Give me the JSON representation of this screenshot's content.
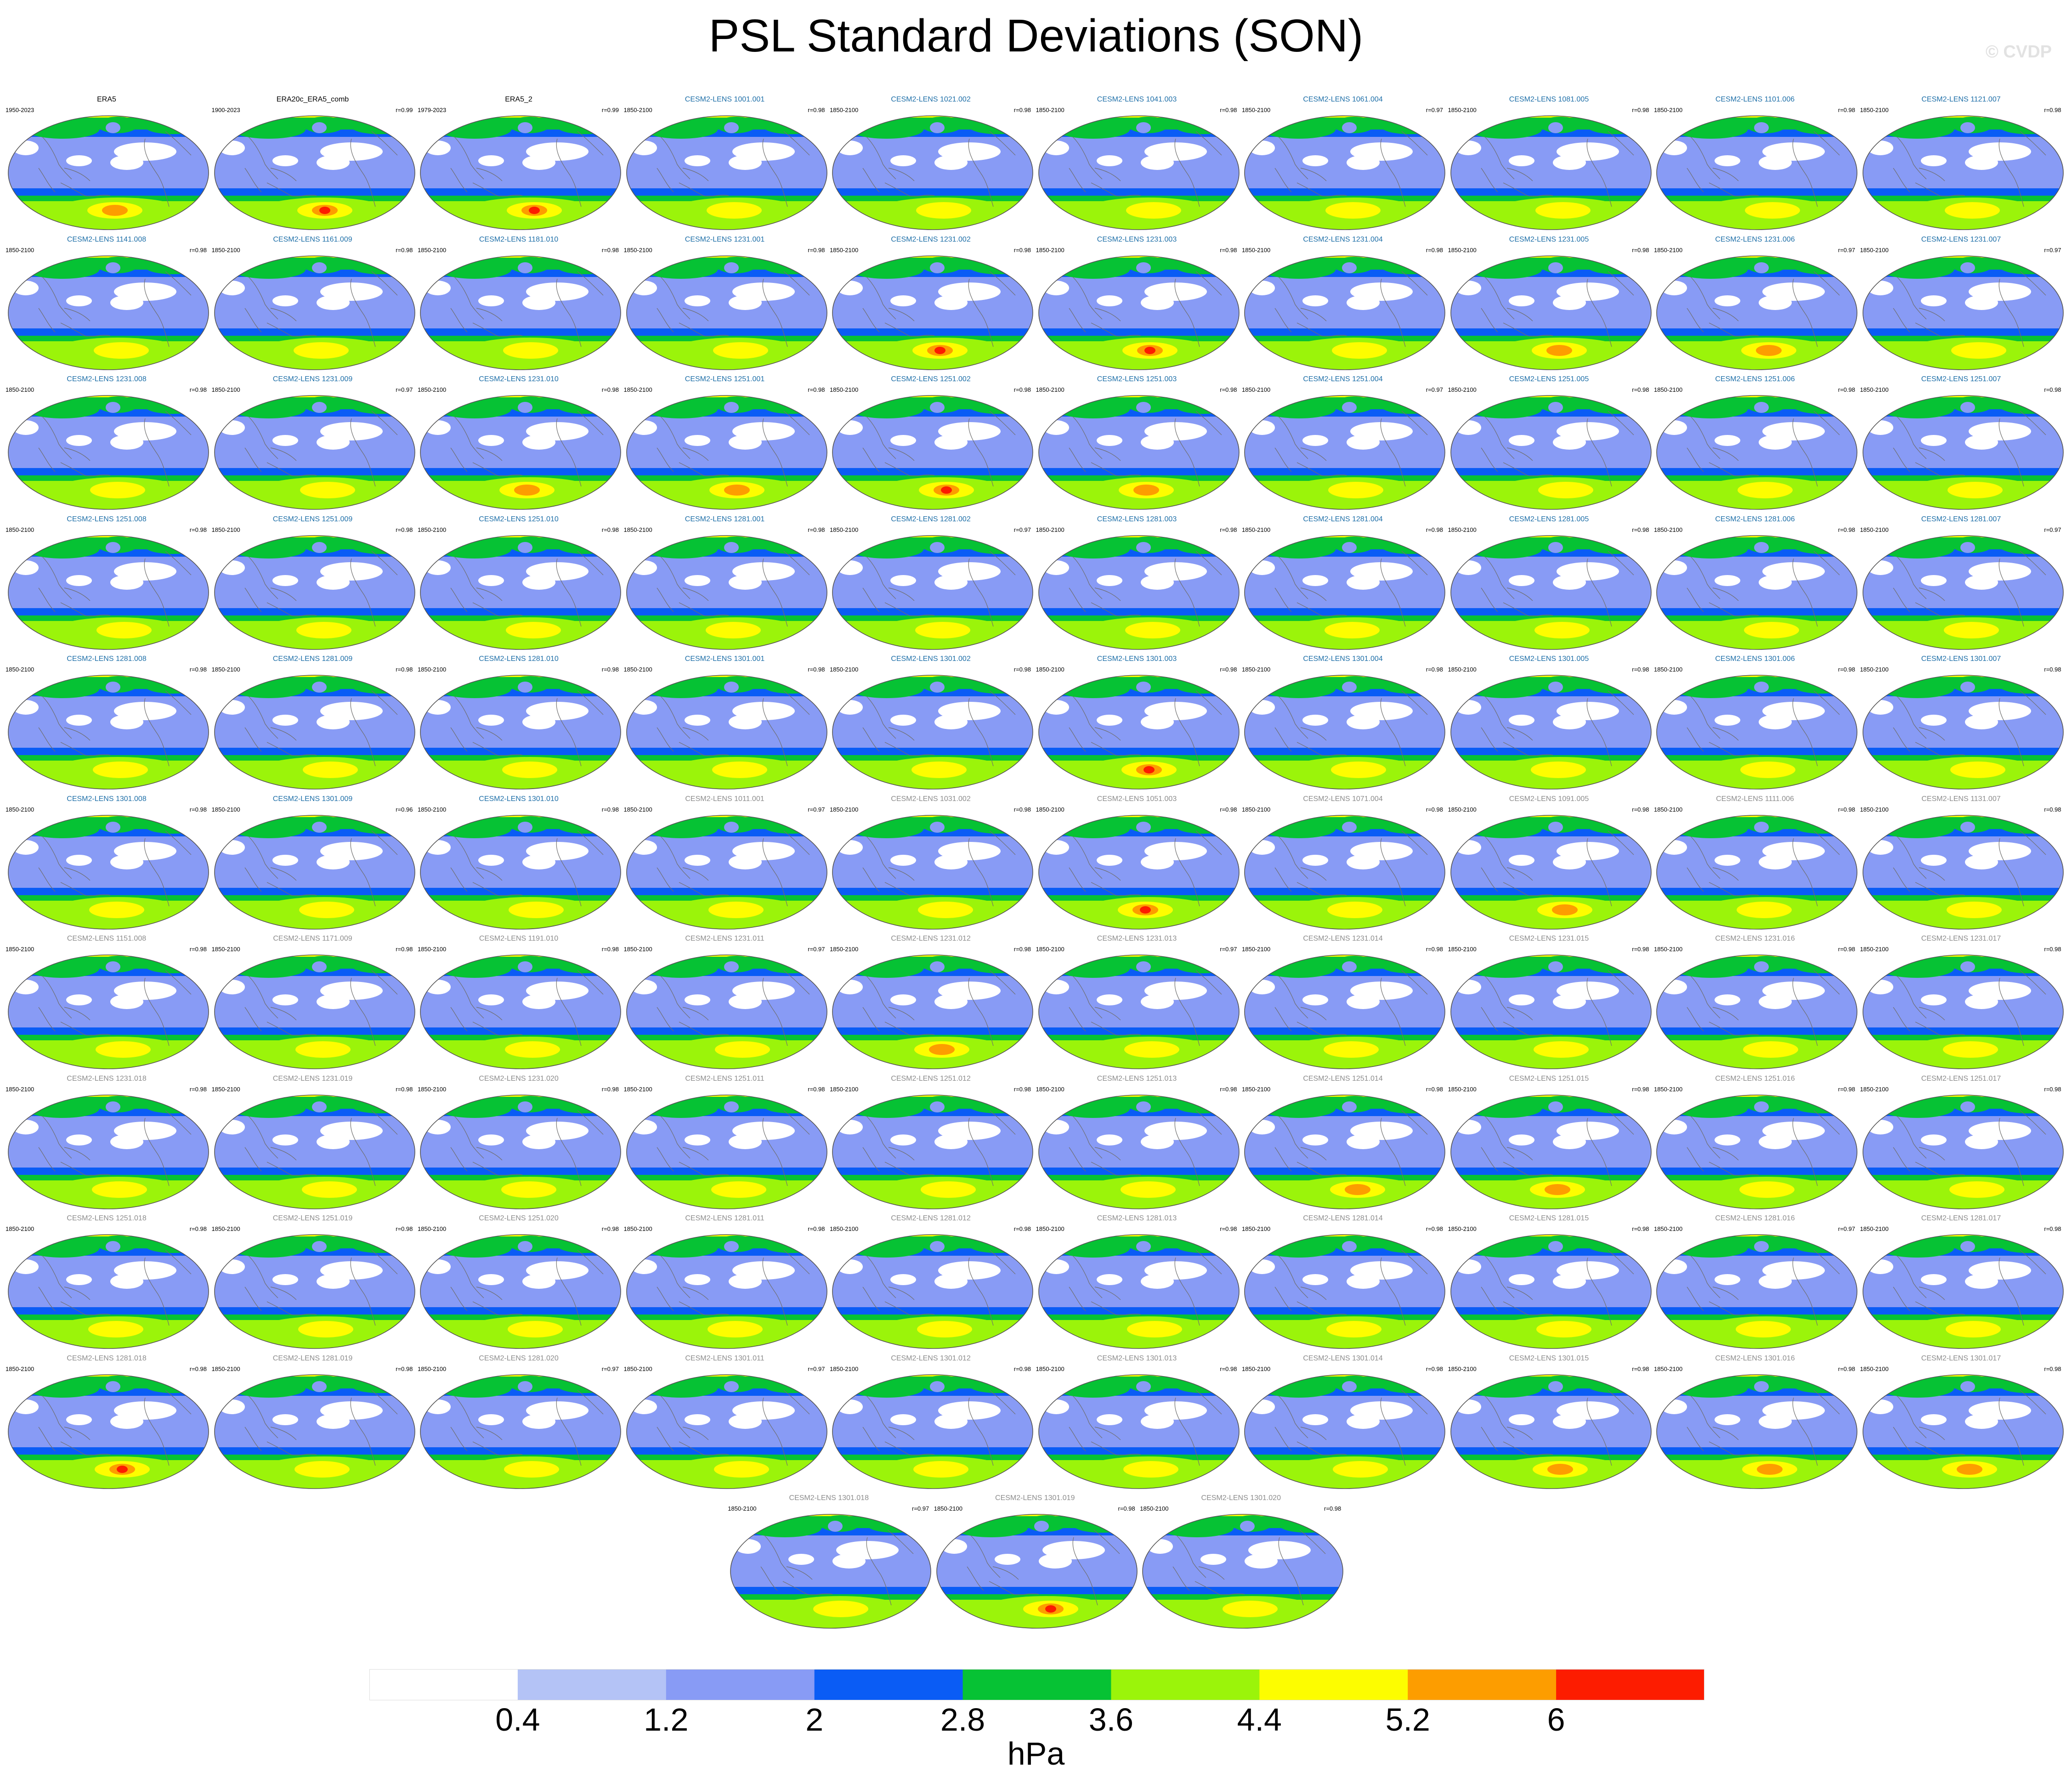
{
  "title": "PSL Standard Deviations (SON)",
  "watermark": "© CVDP",
  "colorbar": {
    "units": "hPa",
    "tick_labels": [
      "0.4",
      "1.2",
      "2",
      "2.8",
      "3.6",
      "4.4",
      "5.2",
      "6"
    ],
    "colors": [
      "#ffffff",
      "#b4c3f6",
      "#889bf5",
      "#0a5cf5",
      "#06c234",
      "#9bf40a",
      "#fdfd00",
      "#fd9d00",
      "#fd1c00"
    ]
  },
  "colors": {
    "observation_label": "#000000",
    "member_label_main": "#1e6fa8",
    "member_label_alt": "#8c8c8c",
    "coastline": "#6e6e6e"
  },
  "chart_data": {
    "type": "heatmap",
    "title": "PSL Standard Deviations (SON)",
    "colorbar_units": "hPa",
    "colorbar_levels": [
      0.4,
      1.2,
      2,
      2.8,
      3.6,
      4.4,
      5.2,
      6
    ],
    "colorbar_range": [
      0,
      6.8
    ],
    "rows": [
      [
        {
          "name": "ERA5",
          "period": "1950-2023",
          "r": "",
          "color_key": "obs",
          "peak": 5.4
        },
        {
          "name": "ERA20c_ERA5_comb",
          "period": "1900-2023",
          "r": "r=0.99",
          "color_key": "obs",
          "peak": 6.2
        },
        {
          "name": "ERA5_2",
          "period": "1979-2023",
          "r": "r=0.99",
          "color_key": "obs",
          "peak": 6.0
        },
        {
          "name": "CESM2-LENS 1001.001",
          "period": "1850-2100",
          "r": "r=0.98",
          "color_key": "main",
          "peak": 5.0
        },
        {
          "name": "CESM2-LENS 1021.002",
          "period": "1850-2100",
          "r": "r=0.98",
          "color_key": "main",
          "peak": 5.0
        },
        {
          "name": "CESM2-LENS 1041.003",
          "period": "1850-2100",
          "r": "r=0.98",
          "color_key": "main",
          "peak": 5.0
        },
        {
          "name": "CESM2-LENS 1061.004",
          "period": "1850-2100",
          "r": "r=0.97",
          "color_key": "main",
          "peak": 5.0
        },
        {
          "name": "CESM2-LENS 1081.005",
          "period": "1850-2100",
          "r": "r=0.98",
          "color_key": "main",
          "peak": 5.0
        },
        {
          "name": "CESM2-LENS 1101.006",
          "period": "1850-2100",
          "r": "r=0.98",
          "color_key": "main",
          "peak": 5.0
        },
        {
          "name": "CESM2-LENS 1121.007",
          "period": "1850-2100",
          "r": "r=0.98",
          "color_key": "main",
          "peak": 5.0
        }
      ],
      [
        {
          "name": "CESM2-LENS 1141.008",
          "period": "1850-2100",
          "r": "r=0.98",
          "color_key": "main",
          "peak": 5.0
        },
        {
          "name": "CESM2-LENS 1161.009",
          "period": "1850-2100",
          "r": "r=0.98",
          "color_key": "main",
          "peak": 5.0
        },
        {
          "name": "CESM2-LENS 1181.010",
          "period": "1850-2100",
          "r": "r=0.98",
          "color_key": "main",
          "peak": 5.0
        },
        {
          "name": "CESM2-LENS 1231.001",
          "period": "1850-2100",
          "r": "r=0.98",
          "color_key": "main",
          "peak": 5.0
        },
        {
          "name": "CESM2-LENS 1231.002",
          "period": "1850-2100",
          "r": "r=0.98",
          "color_key": "main",
          "peak": 6.0
        },
        {
          "name": "CESM2-LENS 1231.003",
          "period": "1850-2100",
          "r": "r=0.98",
          "color_key": "main",
          "peak": 6.0
        },
        {
          "name": "CESM2-LENS 1231.004",
          "period": "1850-2100",
          "r": "r=0.98",
          "color_key": "main",
          "peak": 5.0
        },
        {
          "name": "CESM2-LENS 1231.005",
          "period": "1850-2100",
          "r": "r=0.98",
          "color_key": "main",
          "peak": 5.4
        },
        {
          "name": "CESM2-LENS 1231.006",
          "period": "1850-2100",
          "r": "r=0.97",
          "color_key": "main",
          "peak": 5.4
        },
        {
          "name": "CESM2-LENS 1231.007",
          "period": "1850-2100",
          "r": "r=0.97",
          "color_key": "main",
          "peak": 5.0
        }
      ],
      [
        {
          "name": "CESM2-LENS 1231.008",
          "period": "1850-2100",
          "r": "r=0.98",
          "color_key": "main",
          "peak": 5.0
        },
        {
          "name": "CESM2-LENS 1231.009",
          "period": "1850-2100",
          "r": "r=0.97",
          "color_key": "main",
          "peak": 5.0
        },
        {
          "name": "CESM2-LENS 1231.010",
          "period": "1850-2100",
          "r": "r=0.98",
          "color_key": "main",
          "peak": 5.4
        },
        {
          "name": "CESM2-LENS 1251.001",
          "period": "1850-2100",
          "r": "r=0.98",
          "color_key": "main",
          "peak": 5.4
        },
        {
          "name": "CESM2-LENS 1251.002",
          "period": "1850-2100",
          "r": "r=0.98",
          "color_key": "main",
          "peak": 6.0
        },
        {
          "name": "CESM2-LENS 1251.003",
          "period": "1850-2100",
          "r": "r=0.98",
          "color_key": "main",
          "peak": 5.4
        },
        {
          "name": "CESM2-LENS 1251.004",
          "period": "1850-2100",
          "r": "r=0.97",
          "color_key": "main",
          "peak": 5.0
        },
        {
          "name": "CESM2-LENS 1251.005",
          "period": "1850-2100",
          "r": "r=0.98",
          "color_key": "main",
          "peak": 5.0
        },
        {
          "name": "CESM2-LENS 1251.006",
          "period": "1850-2100",
          "r": "r=0.98",
          "color_key": "main",
          "peak": 5.0
        },
        {
          "name": "CESM2-LENS 1251.007",
          "period": "1850-2100",
          "r": "r=0.98",
          "color_key": "main",
          "peak": 5.0
        }
      ],
      [
        {
          "name": "CESM2-LENS 1251.008",
          "period": "1850-2100",
          "r": "r=0.98",
          "color_key": "main",
          "peak": 5.0
        },
        {
          "name": "CESM2-LENS 1251.009",
          "period": "1850-2100",
          "r": "r=0.98",
          "color_key": "main",
          "peak": 5.0
        },
        {
          "name": "CESM2-LENS 1251.010",
          "period": "1850-2100",
          "r": "r=0.98",
          "color_key": "main",
          "peak": 5.0
        },
        {
          "name": "CESM2-LENS 1281.001",
          "period": "1850-2100",
          "r": "r=0.98",
          "color_key": "main",
          "peak": 5.0
        },
        {
          "name": "CESM2-LENS 1281.002",
          "period": "1850-2100",
          "r": "r=0.97",
          "color_key": "main",
          "peak": 5.0
        },
        {
          "name": "CESM2-LENS 1281.003",
          "period": "1850-2100",
          "r": "r=0.98",
          "color_key": "main",
          "peak": 5.0
        },
        {
          "name": "CESM2-LENS 1281.004",
          "period": "1850-2100",
          "r": "r=0.98",
          "color_key": "main",
          "peak": 5.0
        },
        {
          "name": "CESM2-LENS 1281.005",
          "period": "1850-2100",
          "r": "r=0.98",
          "color_key": "main",
          "peak": 5.0
        },
        {
          "name": "CESM2-LENS 1281.006",
          "period": "1850-2100",
          "r": "r=0.98",
          "color_key": "main",
          "peak": 5.0
        },
        {
          "name": "CESM2-LENS 1281.007",
          "period": "1850-2100",
          "r": "r=0.97",
          "color_key": "main",
          "peak": 5.0
        }
      ],
      [
        {
          "name": "CESM2-LENS 1281.008",
          "period": "1850-2100",
          "r": "r=0.98",
          "color_key": "main",
          "peak": 5.0
        },
        {
          "name": "CESM2-LENS 1281.009",
          "period": "1850-2100",
          "r": "r=0.98",
          "color_key": "main",
          "peak": 5.0
        },
        {
          "name": "CESM2-LENS 1281.010",
          "period": "1850-2100",
          "r": "r=0.98",
          "color_key": "main",
          "peak": 5.0
        },
        {
          "name": "CESM2-LENS 1301.001",
          "period": "1850-2100",
          "r": "r=0.98",
          "color_key": "main",
          "peak": 5.0
        },
        {
          "name": "CESM2-LENS 1301.002",
          "period": "1850-2100",
          "r": "r=0.98",
          "color_key": "main",
          "peak": 5.0
        },
        {
          "name": "CESM2-LENS 1301.003",
          "period": "1850-2100",
          "r": "r=0.98",
          "color_key": "main",
          "peak": 6.0
        },
        {
          "name": "CESM2-LENS 1301.004",
          "period": "1850-2100",
          "r": "r=0.98",
          "color_key": "main",
          "peak": 5.0
        },
        {
          "name": "CESM2-LENS 1301.005",
          "period": "1850-2100",
          "r": "r=0.98",
          "color_key": "main",
          "peak": 5.0
        },
        {
          "name": "CESM2-LENS 1301.006",
          "period": "1850-2100",
          "r": "r=0.98",
          "color_key": "main",
          "peak": 5.0
        },
        {
          "name": "CESM2-LENS 1301.007",
          "period": "1850-2100",
          "r": "r=0.98",
          "color_key": "main",
          "peak": 5.0
        }
      ],
      [
        {
          "name": "CESM2-LENS 1301.008",
          "period": "1850-2100",
          "r": "r=0.98",
          "color_key": "main",
          "peak": 5.0
        },
        {
          "name": "CESM2-LENS 1301.009",
          "period": "1850-2100",
          "r": "r=0.96",
          "color_key": "main",
          "peak": 5.0
        },
        {
          "name": "CESM2-LENS 1301.010",
          "period": "1850-2100",
          "r": "r=0.98",
          "color_key": "main",
          "peak": 5.0
        },
        {
          "name": "CESM2-LENS 1011.001",
          "period": "1850-2100",
          "r": "r=0.97",
          "color_key": "alt",
          "peak": 5.0
        },
        {
          "name": "CESM2-LENS 1031.002",
          "period": "1850-2100",
          "r": "r=0.98",
          "color_key": "alt",
          "peak": 5.0
        },
        {
          "name": "CESM2-LENS 1051.003",
          "period": "1850-2100",
          "r": "r=0.98",
          "color_key": "alt",
          "peak": 6.0
        },
        {
          "name": "CESM2-LENS 1071.004",
          "period": "1850-2100",
          "r": "r=0.98",
          "color_key": "alt",
          "peak": 5.0
        },
        {
          "name": "CESM2-LENS 1091.005",
          "period": "1850-2100",
          "r": "r=0.98",
          "color_key": "alt",
          "peak": 5.4
        },
        {
          "name": "CESM2-LENS 1111.006",
          "period": "1850-2100",
          "r": "r=0.98",
          "color_key": "alt",
          "peak": 5.0
        },
        {
          "name": "CESM2-LENS 1131.007",
          "period": "1850-2100",
          "r": "r=0.98",
          "color_key": "alt",
          "peak": 5.0
        }
      ],
      [
        {
          "name": "CESM2-LENS 1151.008",
          "period": "1850-2100",
          "r": "r=0.98",
          "color_key": "alt",
          "peak": 5.0
        },
        {
          "name": "CESM2-LENS 1171.009",
          "period": "1850-2100",
          "r": "r=0.98",
          "color_key": "alt",
          "peak": 5.0
        },
        {
          "name": "CESM2-LENS 1191.010",
          "period": "1850-2100",
          "r": "r=0.98",
          "color_key": "alt",
          "peak": 5.0
        },
        {
          "name": "CESM2-LENS 1231.011",
          "period": "1850-2100",
          "r": "r=0.97",
          "color_key": "alt",
          "peak": 5.0
        },
        {
          "name": "CESM2-LENS 1231.012",
          "period": "1850-2100",
          "r": "r=0.98",
          "color_key": "alt",
          "peak": 5.4
        },
        {
          "name": "CESM2-LENS 1231.013",
          "period": "1850-2100",
          "r": "r=0.97",
          "color_key": "alt",
          "peak": 5.0
        },
        {
          "name": "CESM2-LENS 1231.014",
          "period": "1850-2100",
          "r": "r=0.98",
          "color_key": "alt",
          "peak": 5.0
        },
        {
          "name": "CESM2-LENS 1231.015",
          "period": "1850-2100",
          "r": "r=0.98",
          "color_key": "alt",
          "peak": 5.0
        },
        {
          "name": "CESM2-LENS 1231.016",
          "period": "1850-2100",
          "r": "r=0.98",
          "color_key": "alt",
          "peak": 5.0
        },
        {
          "name": "CESM2-LENS 1231.017",
          "period": "1850-2100",
          "r": "r=0.98",
          "color_key": "alt",
          "peak": 5.0
        }
      ],
      [
        {
          "name": "CESM2-LENS 1231.018",
          "period": "1850-2100",
          "r": "r=0.98",
          "color_key": "alt",
          "peak": 5.0
        },
        {
          "name": "CESM2-LENS 1231.019",
          "period": "1850-2100",
          "r": "r=0.98",
          "color_key": "alt",
          "peak": 5.0
        },
        {
          "name": "CESM2-LENS 1231.020",
          "period": "1850-2100",
          "r": "r=0.98",
          "color_key": "alt",
          "peak": 5.0
        },
        {
          "name": "CESM2-LENS 1251.011",
          "period": "1850-2100",
          "r": "r=0.98",
          "color_key": "alt",
          "peak": 5.0
        },
        {
          "name": "CESM2-LENS 1251.012",
          "period": "1850-2100",
          "r": "r=0.98",
          "color_key": "alt",
          "peak": 5.0
        },
        {
          "name": "CESM2-LENS 1251.013",
          "period": "1850-2100",
          "r": "r=0.98",
          "color_key": "alt",
          "peak": 5.0
        },
        {
          "name": "CESM2-LENS 1251.014",
          "period": "1850-2100",
          "r": "r=0.98",
          "color_key": "alt",
          "peak": 5.4
        },
        {
          "name": "CESM2-LENS 1251.015",
          "period": "1850-2100",
          "r": "r=0.98",
          "color_key": "alt",
          "peak": 5.4
        },
        {
          "name": "CESM2-LENS 1251.016",
          "period": "1850-2100",
          "r": "r=0.98",
          "color_key": "alt",
          "peak": 5.0
        },
        {
          "name": "CESM2-LENS 1251.017",
          "period": "1850-2100",
          "r": "r=0.98",
          "color_key": "alt",
          "peak": 5.0
        }
      ],
      [
        {
          "name": "CESM2-LENS 1251.018",
          "period": "1850-2100",
          "r": "r=0.98",
          "color_key": "alt",
          "peak": 5.0
        },
        {
          "name": "CESM2-LENS 1251.019",
          "period": "1850-2100",
          "r": "r=0.98",
          "color_key": "alt",
          "peak": 5.0
        },
        {
          "name": "CESM2-LENS 1251.020",
          "period": "1850-2100",
          "r": "r=0.98",
          "color_key": "alt",
          "peak": 5.0
        },
        {
          "name": "CESM2-LENS 1281.011",
          "period": "1850-2100",
          "r": "r=0.98",
          "color_key": "alt",
          "peak": 5.0
        },
        {
          "name": "CESM2-LENS 1281.012",
          "period": "1850-2100",
          "r": "r=0.98",
          "color_key": "alt",
          "peak": 5.0
        },
        {
          "name": "CESM2-LENS 1281.013",
          "period": "1850-2100",
          "r": "r=0.98",
          "color_key": "alt",
          "peak": 5.0
        },
        {
          "name": "CESM2-LENS 1281.014",
          "period": "1850-2100",
          "r": "r=0.98",
          "color_key": "alt",
          "peak": 5.0
        },
        {
          "name": "CESM2-LENS 1281.015",
          "period": "1850-2100",
          "r": "r=0.98",
          "color_key": "alt",
          "peak": 5.0
        },
        {
          "name": "CESM2-LENS 1281.016",
          "period": "1850-2100",
          "r": "r=0.97",
          "color_key": "alt",
          "peak": 5.0
        },
        {
          "name": "CESM2-LENS 1281.017",
          "period": "1850-2100",
          "r": "r=0.98",
          "color_key": "alt",
          "peak": 5.0
        }
      ],
      [
        {
          "name": "CESM2-LENS 1281.018",
          "period": "1850-2100",
          "r": "r=0.98",
          "color_key": "alt",
          "peak": 6.0
        },
        {
          "name": "CESM2-LENS 1281.019",
          "period": "1850-2100",
          "r": "r=0.98",
          "color_key": "alt",
          "peak": 5.0
        },
        {
          "name": "CESM2-LENS 1281.020",
          "period": "1850-2100",
          "r": "r=0.97",
          "color_key": "alt",
          "peak": 5.0
        },
        {
          "name": "CESM2-LENS 1301.011",
          "period": "1850-2100",
          "r": "r=0.97",
          "color_key": "alt",
          "peak": 5.0
        },
        {
          "name": "CESM2-LENS 1301.012",
          "period": "1850-2100",
          "r": "r=0.98",
          "color_key": "alt",
          "peak": 5.0
        },
        {
          "name": "CESM2-LENS 1301.013",
          "period": "1850-2100",
          "r": "r=0.98",
          "color_key": "alt",
          "peak": 5.0
        },
        {
          "name": "CESM2-LENS 1301.014",
          "period": "1850-2100",
          "r": "r=0.98",
          "color_key": "alt",
          "peak": 5.0
        },
        {
          "name": "CESM2-LENS 1301.015",
          "period": "1850-2100",
          "r": "r=0.98",
          "color_key": "alt",
          "peak": 5.4
        },
        {
          "name": "CESM2-LENS 1301.016",
          "period": "1850-2100",
          "r": "r=0.98",
          "color_key": "alt",
          "peak": 5.4
        },
        {
          "name": "CESM2-LENS 1301.017",
          "period": "1850-2100",
          "r": "r=0.98",
          "color_key": "alt",
          "peak": 5.4
        }
      ],
      [
        {
          "name": "CESM2-LENS 1301.018",
          "period": "1850-2100",
          "r": "r=0.97",
          "color_key": "alt",
          "peak": 5.0
        },
        {
          "name": "CESM2-LENS 1301.019",
          "period": "1850-2100",
          "r": "r=0.98",
          "color_key": "alt",
          "peak": 6.0
        },
        {
          "name": "CESM2-LENS 1301.020",
          "period": "1850-2100",
          "r": "r=0.98",
          "color_key": "alt",
          "peak": 5.0
        }
      ]
    ]
  }
}
